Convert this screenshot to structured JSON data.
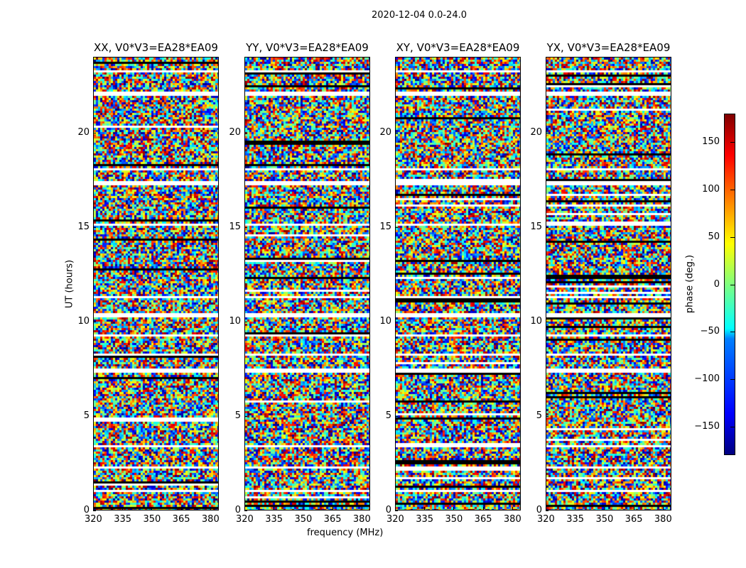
{
  "suptitle": "2020-12-04 0.0-24.0",
  "chart_data": {
    "type": "heatmap",
    "title": "2020-12-04 0.0-24.0",
    "xlabel": "frequency (MHz)",
    "ylabel": "UT (hours)",
    "xlim": [
      320,
      384.4
    ],
    "ylim": [
      0,
      24
    ],
    "xticks": [
      "320",
      "335",
      "350",
      "365",
      "380"
    ],
    "xtick_values": [
      320,
      335,
      350,
      365,
      380
    ],
    "yticks": [
      "0",
      "5",
      "10",
      "15",
      "20"
    ],
    "ytick_values": [
      0,
      5,
      10,
      15,
      20
    ],
    "panels": [
      {
        "title": "XX, V0*V3=EA28*EA09"
      },
      {
        "title": "YY, V0*V3=EA28*EA09"
      },
      {
        "title": "XY, V0*V3=EA28*EA09"
      },
      {
        "title": "YX, V0*V3=EA28*EA09"
      }
    ],
    "flagged_ut_hours": [
      [
        1.0,
        1.1
      ],
      [
        2.2,
        2.3
      ],
      [
        3.4,
        3.5
      ],
      [
        7.3,
        7.5
      ],
      [
        8.2,
        8.3
      ],
      [
        9.2,
        9.4
      ],
      [
        10.3,
        10.5
      ],
      [
        11.3,
        11.4
      ],
      [
        15.1,
        15.2
      ],
      [
        17.3,
        17.5
      ],
      [
        18.1,
        18.2
      ],
      [
        22.0,
        22.2
      ],
      [
        23.3,
        23.4
      ]
    ],
    "colorbar": {
      "label": "phase (deg.)",
      "range": [
        -180,
        180
      ],
      "ticks": [
        "150",
        "100",
        "50",
        "0",
        "−50",
        "−100",
        "−150"
      ],
      "tick_values": [
        150,
        100,
        50,
        0,
        -50,
        -100,
        -150
      ],
      "colormap": "jet"
    }
  }
}
